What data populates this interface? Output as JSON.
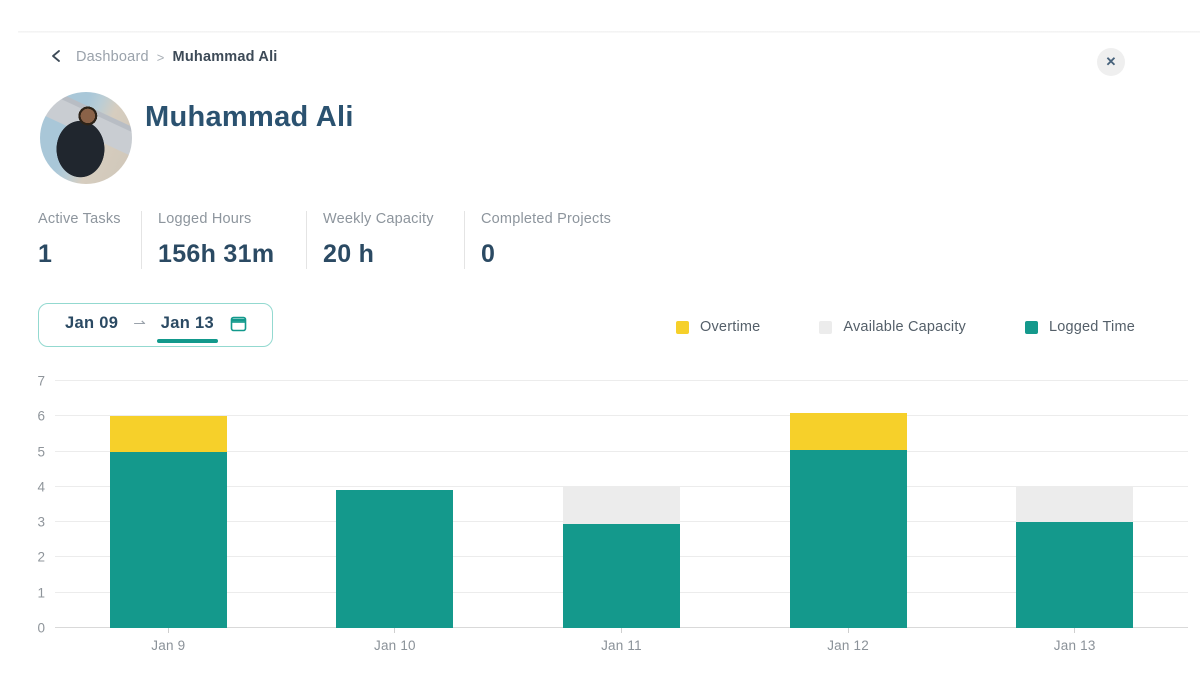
{
  "breadcrumb": {
    "back_label": "back",
    "items": [
      {
        "label": "Dashboard"
      },
      {
        "label": "Muhammad Ali"
      }
    ],
    "separator": ">"
  },
  "close_button": {
    "icon_glyph": "✕"
  },
  "profile": {
    "name": "Muhammad Ali"
  },
  "stats": [
    {
      "label": "Active Tasks",
      "value": "1"
    },
    {
      "label": "Logged Hours",
      "value": "156h 31m"
    },
    {
      "label": "Weekly Capacity",
      "value": "20 h"
    },
    {
      "label": "Completed Projects",
      "value": "0"
    }
  ],
  "date_range": {
    "start": "Jan 09",
    "end": "Jan 13",
    "arrow_glyph": "⇀",
    "active": "end"
  },
  "legend": [
    {
      "label": "Overtime",
      "color": "#F6D02A"
    },
    {
      "label": "Available Capacity",
      "color": "#ECECEC"
    },
    {
      "label": "Logged Time",
      "color": "#14998C"
    }
  ],
  "chart_data": {
    "type": "bar",
    "stacked": true,
    "categories": [
      "Jan 9",
      "Jan 10",
      "Jan 11",
      "Jan 12",
      "Jan 13"
    ],
    "series": [
      {
        "name": "Logged Time",
        "color": "#14998C",
        "values": [
          5.0,
          3.9,
          2.95,
          5.05,
          3.0
        ]
      },
      {
        "name": "Overtime",
        "color": "#F6D02A",
        "values": [
          1.0,
          0,
          0,
          1.05,
          0
        ]
      },
      {
        "name": "Available Capacity",
        "color": "#ECECEC",
        "values": [
          0,
          0,
          1.05,
          0,
          1.0
        ]
      }
    ],
    "ylim": [
      0,
      7
    ],
    "yticks": [
      0,
      1,
      2,
      3,
      4,
      5,
      6,
      7
    ],
    "grid": true,
    "legend_position": "top-right",
    "xlabel": "",
    "ylabel": ""
  },
  "colors": {
    "accent_teal": "#12998C",
    "accent_yellow": "#F6D02A",
    "bar_gray": "#ECECEC",
    "heading_navy": "#2B5270",
    "value_navy": "#2B4A63",
    "muted_text": "#8D959D",
    "picker_border": "#93D9D0"
  }
}
